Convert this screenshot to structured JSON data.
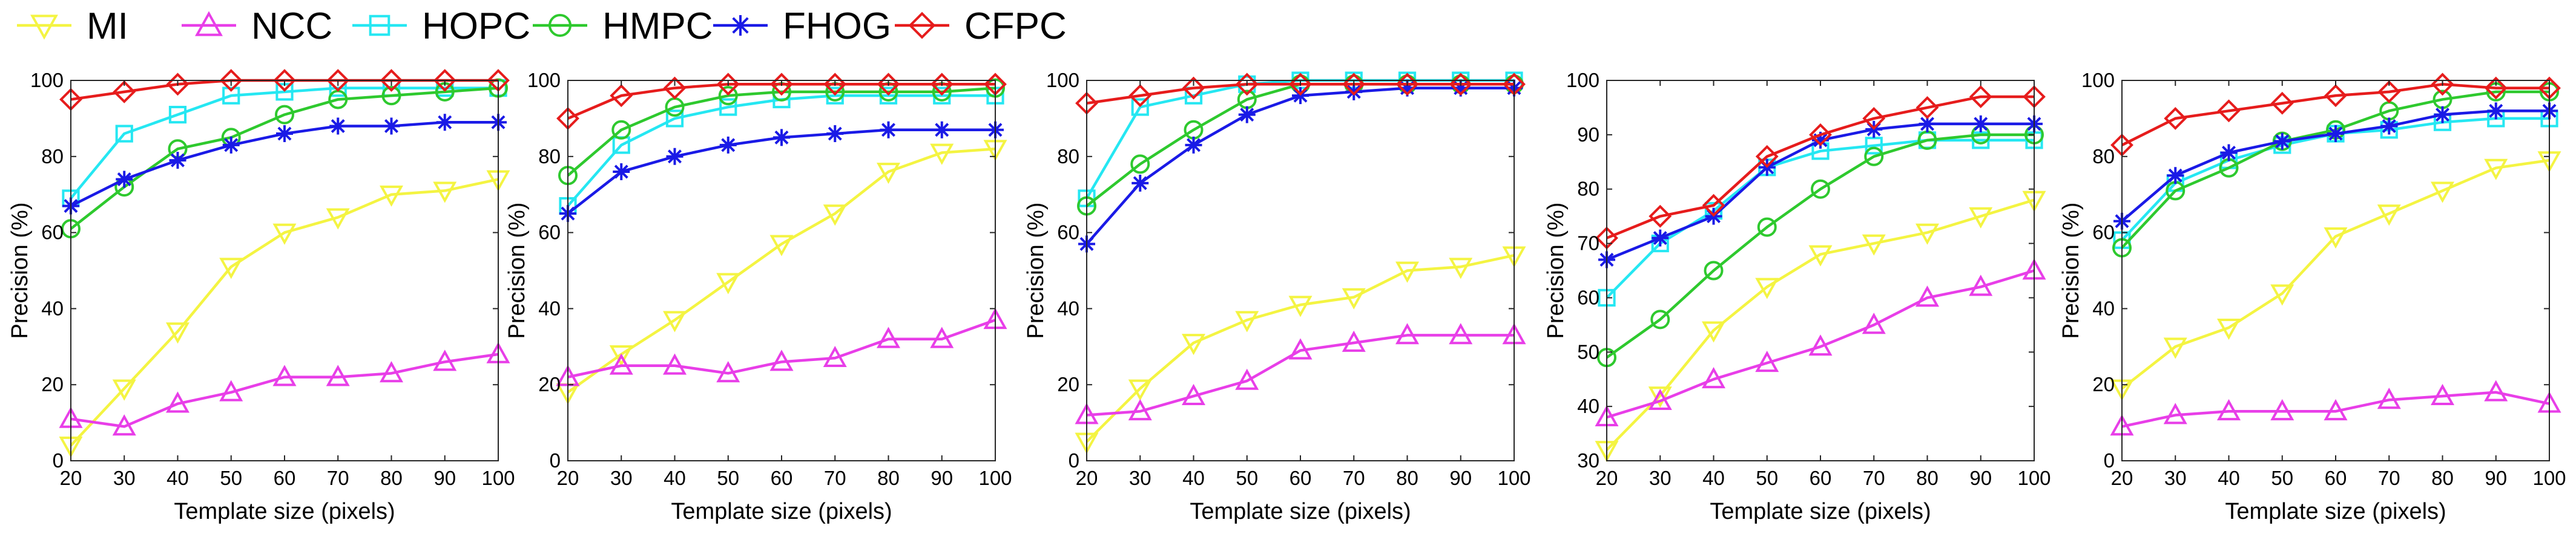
{
  "chart_data": {
    "type": "line",
    "legend": [
      {
        "name": "MI",
        "color": "#f4f442",
        "marker": "triangle-down"
      },
      {
        "name": "NCC",
        "color": "#e83ee8",
        "marker": "triangle-up"
      },
      {
        "name": "HOPC",
        "color": "#25e7f2",
        "marker": "square"
      },
      {
        "name": "HMPC",
        "color": "#2ec92e",
        "marker": "circle"
      },
      {
        "name": "FHOG",
        "color": "#1a1ae6",
        "marker": "asterisk"
      },
      {
        "name": "CFPC",
        "color": "#e61c1c",
        "marker": "diamond"
      }
    ],
    "x": [
      20,
      30,
      40,
      50,
      60,
      70,
      80,
      90,
      100
    ],
    "xlabel": "Template size (pixels)",
    "ylabel": "Precision (%)",
    "panels": [
      {
        "ylim": [
          0,
          100
        ],
        "yticks": [
          0,
          20,
          40,
          60,
          80,
          100
        ],
        "series": [
          {
            "name": "MI",
            "values": [
              4,
              19,
              34,
              51,
              60,
              64,
              70,
              71,
              74
            ]
          },
          {
            "name": "NCC",
            "values": [
              11,
              9,
              15,
              18,
              22,
              22,
              23,
              26,
              28
            ]
          },
          {
            "name": "HOPC",
            "values": [
              69,
              86,
              91,
              96,
              97,
              98,
              98,
              98,
              98
            ]
          },
          {
            "name": "HMPC",
            "values": [
              61,
              72,
              82,
              85,
              91,
              95,
              96,
              97,
              98
            ]
          },
          {
            "name": "FHOG",
            "values": [
              67,
              74,
              79,
              83,
              86,
              88,
              88,
              89,
              89
            ]
          },
          {
            "name": "CFPC",
            "values": [
              95,
              97,
              99,
              100,
              100,
              100,
              100,
              100,
              100
            ]
          }
        ]
      },
      {
        "ylim": [
          0,
          100
        ],
        "yticks": [
          0,
          20,
          40,
          60,
          80,
          100
        ],
        "series": [
          {
            "name": "MI",
            "values": [
              18,
              28,
              37,
              47,
              57,
              65,
              76,
              81,
              82
            ]
          },
          {
            "name": "NCC",
            "values": [
              22,
              25,
              25,
              23,
              26,
              27,
              32,
              32,
              37
            ]
          },
          {
            "name": "HOPC",
            "values": [
              67,
              83,
              90,
              93,
              95,
              96,
              96,
              96,
              96
            ]
          },
          {
            "name": "HMPC",
            "values": [
              75,
              87,
              93,
              96,
              97,
              97,
              97,
              97,
              98
            ]
          },
          {
            "name": "FHOG",
            "values": [
              65,
              76,
              80,
              83,
              85,
              86,
              87,
              87,
              87
            ]
          },
          {
            "name": "CFPC",
            "values": [
              90,
              96,
              98,
              99,
              99,
              99,
              99,
              99,
              99
            ]
          }
        ]
      },
      {
        "ylim": [
          0,
          100
        ],
        "yticks": [
          0,
          20,
          40,
          60,
          80,
          100
        ],
        "series": [
          {
            "name": "MI",
            "values": [
              5,
              19,
              31,
              37,
              41,
              43,
              50,
              51,
              54
            ]
          },
          {
            "name": "NCC",
            "values": [
              12,
              13,
              17,
              21,
              29,
              31,
              33,
              33,
              33
            ]
          },
          {
            "name": "HOPC",
            "values": [
              69,
              93,
              96,
              99,
              100,
              100,
              100,
              100,
              100
            ]
          },
          {
            "name": "HMPC",
            "values": [
              67,
              78,
              87,
              95,
              99,
              99,
              99,
              99,
              99
            ]
          },
          {
            "name": "FHOG",
            "values": [
              57,
              73,
              83,
              91,
              96,
              97,
              98,
              98,
              98
            ]
          },
          {
            "name": "CFPC",
            "values": [
              94,
              96,
              98,
              99,
              99,
              99,
              99,
              99,
              99
            ]
          }
        ]
      },
      {
        "ylim": [
          30,
          100
        ],
        "yticks": [
          30,
          40,
          50,
          60,
          70,
          80,
          90,
          100
        ],
        "series": [
          {
            "name": "MI",
            "values": [
              32,
              42,
              54,
              62,
              68,
              70,
              72,
              75,
              78
            ]
          },
          {
            "name": "NCC",
            "values": [
              38,
              41,
              45,
              48,
              51,
              55,
              60,
              62,
              65
            ]
          },
          {
            "name": "HOPC",
            "values": [
              60,
              70,
              76,
              84,
              87,
              88,
              89,
              89,
              89
            ]
          },
          {
            "name": "HMPC",
            "values": [
              49,
              56,
              65,
              73,
              80,
              86,
              89,
              90,
              90
            ]
          },
          {
            "name": "FHOG",
            "values": [
              67,
              71,
              75,
              84,
              89,
              91,
              92,
              92,
              92
            ]
          },
          {
            "name": "CFPC",
            "values": [
              71,
              75,
              77,
              86,
              90,
              93,
              95,
              97,
              97
            ]
          }
        ]
      },
      {
        "ylim": [
          0,
          100
        ],
        "yticks": [
          0,
          20,
          40,
          60,
          80,
          100
        ],
        "series": [
          {
            "name": "MI",
            "values": [
              19,
              30,
              35,
              44,
              59,
              65,
              71,
              77,
              79
            ]
          },
          {
            "name": "NCC",
            "values": [
              9,
              12,
              13,
              13,
              13,
              16,
              17,
              18,
              15
            ]
          },
          {
            "name": "HOPC",
            "values": [
              58,
              73,
              79,
              83,
              86,
              87,
              89,
              90,
              90
            ]
          },
          {
            "name": "HMPC",
            "values": [
              56,
              71,
              77,
              84,
              87,
              92,
              95,
              97,
              97
            ]
          },
          {
            "name": "FHOG",
            "values": [
              63,
              75,
              81,
              84,
              86,
              88,
              91,
              92,
              92
            ]
          },
          {
            "name": "CFPC",
            "values": [
              83,
              90,
              92,
              94,
              96,
              97,
              99,
              98,
              98
            ]
          }
        ]
      }
    ]
  }
}
